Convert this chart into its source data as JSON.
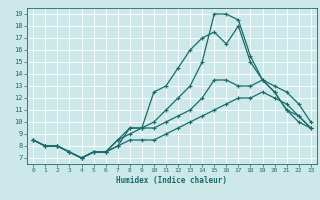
{
  "xlabel": "Humidex (Indice chaleur)",
  "bg_color": "#cce8e8",
  "line_color": "#1a6b6b",
  "grid_color": "#ffffff",
  "xlim": [
    -0.5,
    23.5
  ],
  "ylim": [
    6.5,
    19.5
  ],
  "xticks": [
    0,
    1,
    2,
    3,
    4,
    5,
    6,
    7,
    8,
    9,
    10,
    11,
    12,
    13,
    14,
    15,
    16,
    17,
    18,
    19,
    20,
    21,
    22,
    23
  ],
  "yticks": [
    7,
    8,
    9,
    10,
    11,
    12,
    13,
    14,
    15,
    16,
    17,
    18,
    19
  ],
  "series": [
    {
      "x": [
        0,
        1,
        2,
        3,
        4,
        5,
        6,
        7,
        8,
        9,
        10,
        11,
        12,
        13,
        14,
        15,
        16,
        17,
        18,
        19,
        20,
        21,
        22,
        23
      ],
      "y": [
        8.5,
        8.0,
        8.0,
        7.5,
        7.0,
        7.5,
        7.5,
        8.0,
        9.5,
        9.5,
        10.0,
        11.0,
        12.0,
        13.0,
        15.0,
        19.0,
        19.0,
        18.5,
        15.5,
        13.5,
        12.5,
        11.0,
        10.0,
        9.5
      ]
    },
    {
      "x": [
        0,
        1,
        2,
        3,
        4,
        5,
        6,
        7,
        8,
        9,
        10,
        11,
        12,
        13,
        14,
        15,
        16,
        17,
        18,
        19,
        20,
        21,
        22,
        23
      ],
      "y": [
        8.5,
        8.0,
        8.0,
        7.5,
        7.0,
        7.5,
        7.5,
        8.5,
        9.0,
        9.5,
        12.5,
        13.0,
        14.5,
        16.0,
        17.0,
        17.5,
        16.5,
        18.0,
        15.0,
        13.5,
        13.0,
        12.5,
        11.5,
        10.0
      ]
    },
    {
      "x": [
        0,
        1,
        2,
        3,
        4,
        5,
        6,
        7,
        8,
        9,
        10,
        11,
        12,
        13,
        14,
        15,
        16,
        17,
        18,
        19,
        20,
        21,
        22,
        23
      ],
      "y": [
        8.5,
        8.0,
        8.0,
        7.5,
        7.0,
        7.5,
        7.5,
        8.5,
        9.5,
        9.5,
        9.5,
        10.0,
        10.5,
        11.0,
        12.0,
        13.5,
        13.5,
        13.0,
        13.0,
        13.5,
        12.5,
        11.0,
        10.5,
        9.5
      ]
    },
    {
      "x": [
        0,
        1,
        2,
        3,
        4,
        5,
        6,
        7,
        8,
        9,
        10,
        11,
        12,
        13,
        14,
        15,
        16,
        17,
        18,
        19,
        20,
        21,
        22,
        23
      ],
      "y": [
        8.5,
        8.0,
        8.0,
        7.5,
        7.0,
        7.5,
        7.5,
        8.0,
        8.5,
        8.5,
        8.5,
        9.0,
        9.5,
        10.0,
        10.5,
        11.0,
        11.5,
        12.0,
        12.0,
        12.5,
        12.0,
        11.5,
        10.5,
        9.5
      ]
    }
  ]
}
